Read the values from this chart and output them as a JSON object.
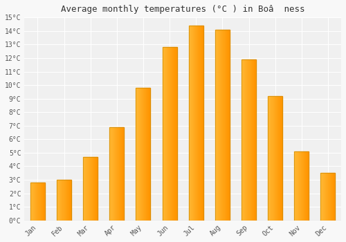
{
  "title": "Average monthly temperatures (°C ) in Boâ  ness",
  "months": [
    "Jan",
    "Feb",
    "Mar",
    "Apr",
    "May",
    "Jun",
    "Jul",
    "Aug",
    "Sep",
    "Oct",
    "Nov",
    "Dec"
  ],
  "values": [
    2.8,
    3.0,
    4.7,
    6.9,
    9.8,
    12.8,
    14.4,
    14.1,
    11.9,
    9.2,
    5.1,
    3.5
  ],
  "ylim": [
    0,
    15
  ],
  "yticks": [
    0,
    1,
    2,
    3,
    4,
    5,
    6,
    7,
    8,
    9,
    10,
    11,
    12,
    13,
    14,
    15
  ],
  "background_color": "#f8f8f8",
  "plot_bg_color": "#f0f0f0",
  "grid_color": "#ffffff",
  "bar_color_left": "#FFB833",
  "bar_color_right": "#FF9500",
  "bar_edge_color": "#CC8800",
  "title_fontsize": 9,
  "tick_fontsize": 7,
  "bar_width": 0.55
}
